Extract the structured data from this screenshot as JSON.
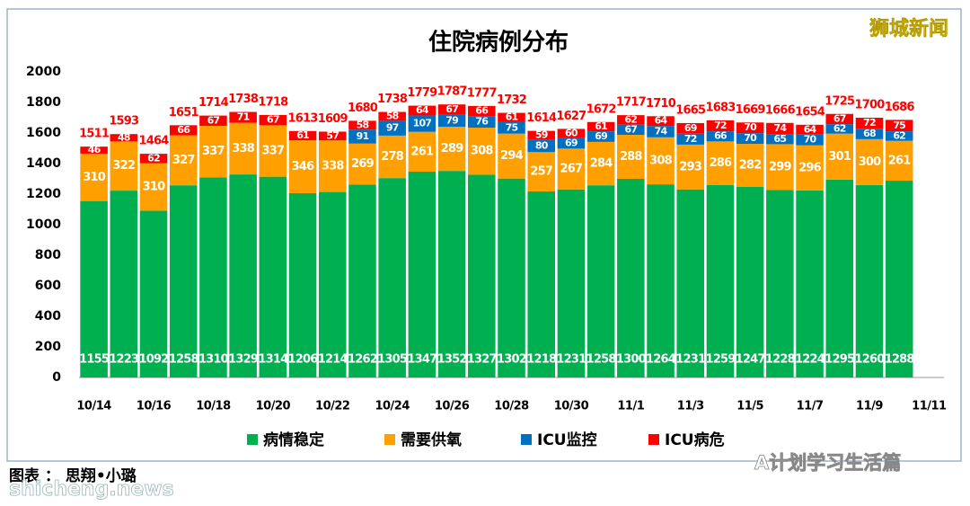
{
  "header": {
    "brand": "狮城新闻"
  },
  "footer": {
    "credit": "图表 ： 思翔•小璐",
    "site": "shicheng.news",
    "wechat": "A计划学习生活篇"
  },
  "chart_data": {
    "type": "bar",
    "stacked": true,
    "title": "住院病例分布",
    "categories": [
      "10/14",
      null,
      "10/16",
      null,
      "10/18",
      null,
      "10/20",
      null,
      "10/22",
      null,
      "10/24",
      null,
      "10/26",
      null,
      "10/28",
      null,
      "10/30",
      null,
      "11/1",
      null,
      "11/3",
      null,
      "11/5",
      null,
      "11/7",
      null,
      "11/9",
      null,
      "11/11"
    ],
    "series": [
      {
        "name": "病情稳定",
        "color": "#00b050",
        "values": [
          1155,
          1223,
          1092,
          1258,
          1310,
          1329,
          1314,
          1206,
          1214,
          1262,
          1305,
          1347,
          1352,
          1327,
          1302,
          1218,
          1231,
          1258,
          1300,
          1264,
          1231,
          1259,
          1247,
          1228,
          1224,
          1295,
          1260,
          1288,
          null
        ]
      },
      {
        "name": "需要供氧",
        "color": "#ffa000",
        "values": [
          310,
          322,
          310,
          327,
          337,
          338,
          337,
          346,
          338,
          269,
          278,
          261,
          289,
          308,
          294,
          257,
          267,
          284,
          288,
          308,
          293,
          286,
          282,
          299,
          296,
          301,
          300,
          261,
          null
        ]
      },
      {
        "name": "ICU监控",
        "color": "#0070c0",
        "values": [
          null,
          null,
          null,
          null,
          null,
          null,
          null,
          null,
          null,
          91,
          97,
          107,
          79,
          76,
          75,
          80,
          69,
          69,
          67,
          74,
          72,
          66,
          70,
          65,
          70,
          62,
          68,
          62,
          null
        ]
      },
      {
        "name": "ICU病危",
        "color": "#ff0000",
        "values": [
          46,
          48,
          62,
          66,
          67,
          71,
          67,
          61,
          57,
          58,
          58,
          64,
          67,
          66,
          61,
          59,
          60,
          61,
          62,
          64,
          69,
          72,
          70,
          74,
          64,
          67,
          72,
          75,
          null
        ]
      }
    ],
    "totals": [
      1511,
      1593,
      1464,
      1651,
      1714,
      1738,
      1718,
      1613,
      1609,
      1680,
      1738,
      1779,
      1787,
      1777,
      1732,
      1614,
      1627,
      1672,
      1717,
      1710,
      1665,
      1683,
      1669,
      1666,
      1654,
      1725,
      1700,
      1686,
      null
    ],
    "totals_color": "#ff0000",
    "ylim": [
      0,
      2000
    ],
    "yticks": [
      0,
      200,
      400,
      600,
      800,
      1000,
      1200,
      1400,
      1600,
      1800,
      2000
    ],
    "grid": false
  }
}
